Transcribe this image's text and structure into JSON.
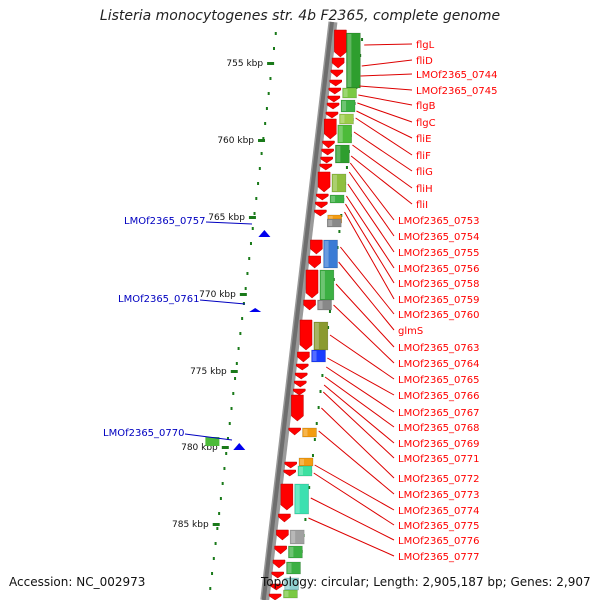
{
  "title": "Listeria monocytogenes str. 4b F2365, complete genome",
  "footer": {
    "accession": "Accession: NC_002973",
    "summary": "Topology: circular; Length: 2,905,187 bp; Genes: 2,907"
  },
  "colors": {
    "backbone": "#808080",
    "gene_forward": "#ff0000",
    "label_right": "#ff0000",
    "label_left": "#0000c0",
    "tick": "#1a7a1a"
  },
  "ticks": [
    "755 kbp",
    "760 kbp",
    "765 kbp",
    "770 kbp",
    "775 kbp",
    "780 kbp",
    "785 kbp"
  ],
  "right_labels": [
    "flgL",
    "fliD",
    "LMOf2365_0744",
    "LMOf2365_0745",
    "flgB",
    "flgC",
    "fliE",
    "fliF",
    "fliG",
    "fliH",
    "fliI",
    "LMOf2365_0753",
    "LMOf2365_0754",
    "LMOf2365_0755",
    "LMOf2365_0756",
    "LMOf2365_0758",
    "LMOf2365_0759",
    "LMOf2365_0760",
    "glmS",
    "LMOf2365_0763",
    "LMOf2365_0764",
    "LMOf2365_0765",
    "LMOf2365_0766",
    "LMOf2365_0767",
    "LMOf2365_0768",
    "LMOf2365_0769",
    "LMOf2365_0771",
    "LMOf2365_0772",
    "LMOf2365_0773",
    "LMOf2365_0774",
    "LMOf2365_0775",
    "LMOf2365_0776",
    "LMOf2365_0777"
  ],
  "left_labels": [
    "LMOf2365_0757",
    "LMOf2365_0761",
    "LMOf2365_0770"
  ]
}
